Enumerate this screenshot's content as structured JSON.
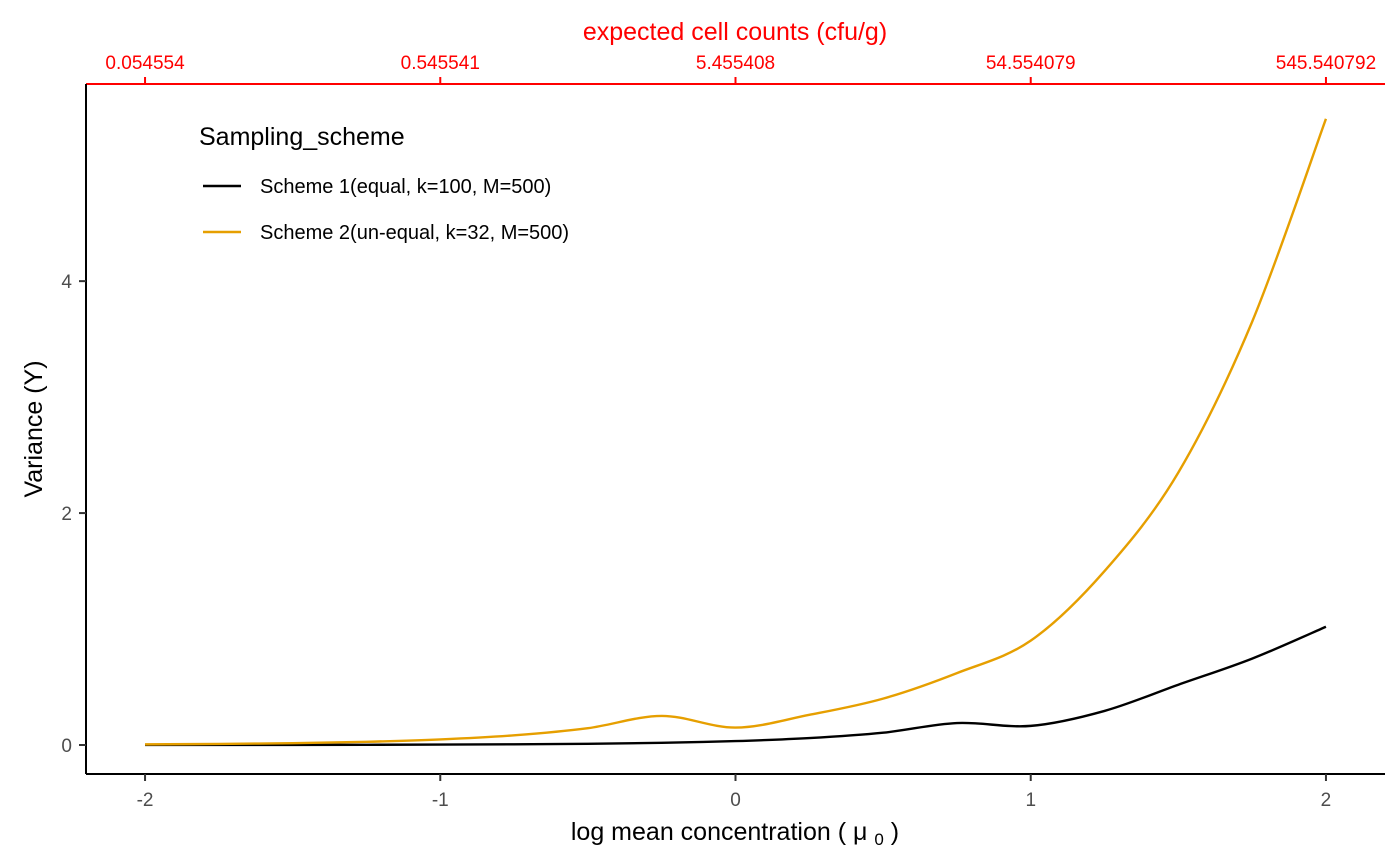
{
  "chart_data": {
    "type": "line",
    "xlabel": "log mean concentration",
    "xlabel_symbol": "μ",
    "xlabel_subscript": "0",
    "ylabel": "Variance (Y)",
    "secondary_xlabel": "expected cell counts (cfu/g)",
    "xlim": [
      -2.2,
      2.2
    ],
    "ylim": [
      -0.25,
      5.7
    ],
    "x_ticks": [
      -2,
      -1,
      0,
      1,
      2
    ],
    "x_tick_labels": [
      "-2",
      "-1",
      "0",
      "1",
      "2"
    ],
    "y_ticks": [
      0,
      2,
      4
    ],
    "y_tick_labels": [
      "0",
      "2",
      "4"
    ],
    "secondary_x_ticks": [
      -2,
      -1,
      0,
      1,
      2
    ],
    "secondary_x_tick_labels": [
      "0.054554",
      "0.545541",
      "5.455408",
      "54.554079",
      "545.540792"
    ],
    "x": [
      -2.0,
      -1.75,
      -1.5,
      -1.25,
      -1.0,
      -0.75,
      -0.5,
      -0.25,
      0.0,
      0.25,
      0.5,
      0.75,
      1.0,
      1.25,
      1.5,
      1.75,
      2.0
    ],
    "series": [
      {
        "name": "Scheme 1(equal, k=100, M=500)",
        "color": "#000000",
        "values": [
          0.0003,
          0.0006,
          0.0011,
          0.0019,
          0.0034,
          0.006,
          0.0106,
          0.0189,
          0.0336,
          0.0597,
          0.106,
          0.189,
          0.165,
          0.294,
          0.52,
          0.745,
          1.02
        ]
      },
      {
        "name": "Scheme 2(un-equal, k=32, M=500)",
        "color": "#E69F00",
        "values": [
          0.0054,
          0.0093,
          0.0161,
          0.0279,
          0.0483,
          0.0836,
          0.145,
          0.251,
          0.15,
          0.26,
          0.4,
          0.62,
          0.9,
          1.5,
          2.35,
          3.65,
          5.4
        ]
      }
    ],
    "legend": {
      "title": "Sampling_scheme",
      "placement": "top-left"
    },
    "colors": {
      "secondary_axis": "#FF0000",
      "tick_label": "#4D4D4D",
      "axis_line": "#000000"
    },
    "grid": false
  }
}
